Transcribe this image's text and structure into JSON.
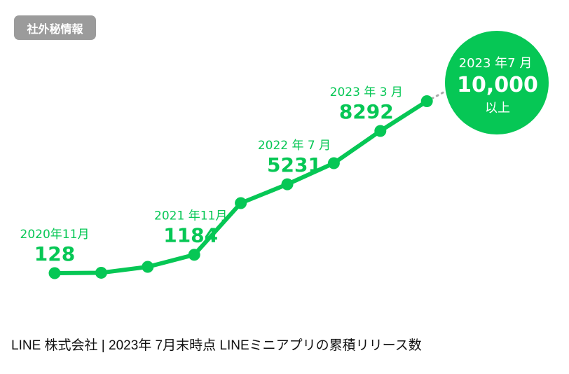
{
  "badge": "社外秘情報",
  "footer": "LINE 株式会社 | 2023年 7月末時点 LINEミニアプリの累積リリース数",
  "colors": {
    "line": "#06c755",
    "dotted": "#aaaaaa",
    "badge": "#9b9b9b"
  },
  "chart_data": {
    "type": "line",
    "title": "",
    "xlabel": "",
    "ylabel": "",
    "values": [
      128,
      150,
      490,
      1184,
      4150,
      5231,
      6440,
      8292,
      10000
    ],
    "grid": false,
    "annotations": [
      {
        "index": 0,
        "date": "2020年11月",
        "value": "128"
      },
      {
        "index": 3,
        "date": "2021 年11月",
        "value": "1184"
      },
      {
        "index": 5,
        "date": "2022 年 7 月",
        "value": "5231"
      },
      {
        "index": 7,
        "date": "2023 年 3 月",
        "value": "8292"
      }
    ],
    "callout": {
      "date": "2023 年7 月",
      "value": "10,000",
      "suffix": "以上"
    }
  }
}
